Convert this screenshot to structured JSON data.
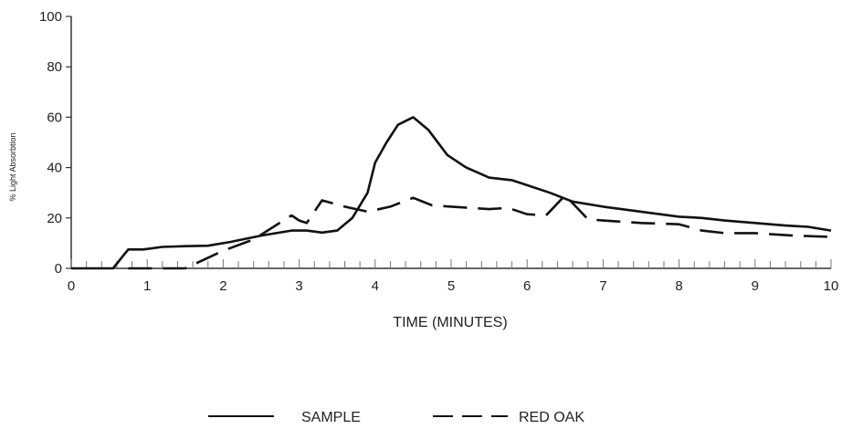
{
  "chart_data": {
    "type": "line",
    "xlabel": "TIME (MINUTES)",
    "ylabel": "% Light Absorbtion",
    "xlim": [
      0,
      10
    ],
    "ylim": [
      0,
      100
    ],
    "xticks": [
      0,
      1,
      2,
      3,
      4,
      5,
      6,
      7,
      8,
      9,
      10
    ],
    "yticks": [
      0,
      20,
      40,
      60,
      80,
      100
    ],
    "grid": false,
    "legend_position": "bottom",
    "series": [
      {
        "name": "SAMPLE",
        "style": "solid",
        "color": "#111111",
        "points": [
          [
            0,
            0
          ],
          [
            0.55,
            0
          ],
          [
            0.75,
            7.5
          ],
          [
            0.95,
            7.5
          ],
          [
            1.2,
            8.5
          ],
          [
            1.5,
            8.8
          ],
          [
            1.8,
            9
          ],
          [
            2.1,
            10.5
          ],
          [
            2.5,
            13
          ],
          [
            2.9,
            15
          ],
          [
            3.1,
            15
          ],
          [
            3.3,
            14.2
          ],
          [
            3.5,
            15
          ],
          [
            3.7,
            20
          ],
          [
            3.9,
            30
          ],
          [
            4.0,
            42
          ],
          [
            4.15,
            50
          ],
          [
            4.3,
            57
          ],
          [
            4.5,
            60
          ],
          [
            4.7,
            55
          ],
          [
            4.95,
            45
          ],
          [
            5.2,
            40
          ],
          [
            5.5,
            36
          ],
          [
            5.8,
            35
          ],
          [
            6.0,
            33
          ],
          [
            6.3,
            30
          ],
          [
            6.6,
            26.5
          ],
          [
            7.0,
            24.5
          ],
          [
            7.5,
            22.5
          ],
          [
            8.0,
            20.5
          ],
          [
            8.3,
            20
          ],
          [
            8.6,
            19
          ],
          [
            9.0,
            18
          ],
          [
            9.4,
            17
          ],
          [
            9.7,
            16.5
          ],
          [
            10,
            15
          ]
        ]
      },
      {
        "name": "RED OAK",
        "style": "dashed",
        "color": "#111111",
        "points": [
          [
            0.75,
            0
          ],
          [
            1.3,
            0
          ],
          [
            1.5,
            0
          ],
          [
            2.0,
            7
          ],
          [
            2.4,
            11.5
          ],
          [
            2.9,
            21
          ],
          [
            3.0,
            19
          ],
          [
            3.1,
            18
          ],
          [
            3.3,
            27
          ],
          [
            3.6,
            24.5
          ],
          [
            3.9,
            22.5
          ],
          [
            4.2,
            24.5
          ],
          [
            4.5,
            28
          ],
          [
            4.75,
            25
          ],
          [
            5.0,
            24.5
          ],
          [
            5.5,
            23.5
          ],
          [
            5.75,
            24
          ],
          [
            6.0,
            21.5
          ],
          [
            6.25,
            21
          ],
          [
            6.5,
            29
          ],
          [
            6.8,
            19.5
          ],
          [
            7.0,
            19
          ],
          [
            7.5,
            18
          ],
          [
            8.0,
            17.5
          ],
          [
            8.3,
            15
          ],
          [
            8.6,
            14
          ],
          [
            9.0,
            14
          ],
          [
            9.5,
            13
          ],
          [
            10,
            12.5
          ]
        ]
      }
    ]
  }
}
